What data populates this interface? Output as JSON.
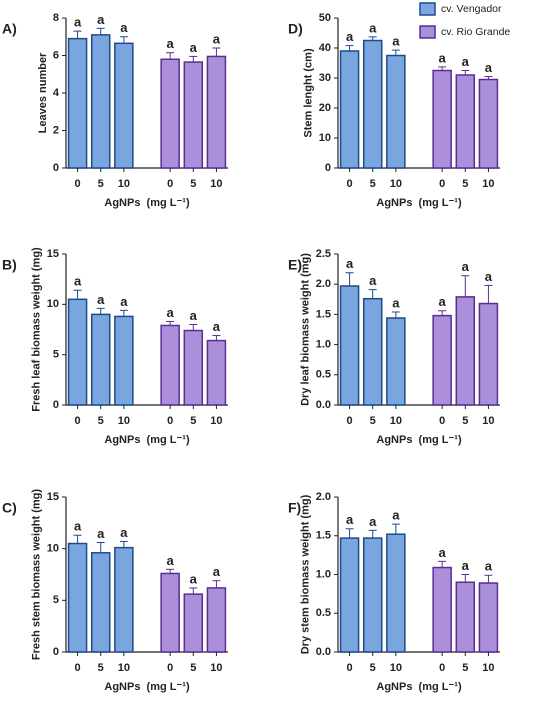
{
  "chart_data": [
    {
      "type": "bar",
      "panel_label": "A)",
      "ylabel": "Leaves number",
      "xlabel": "AgNPs  (mg L⁻¹)",
      "categories": [
        "0",
        "5",
        "10"
      ],
      "ylim": [
        0,
        8
      ],
      "yticks": [
        0,
        2,
        4,
        6,
        8
      ],
      "series": [
        {
          "color": "#7aa6e0",
          "edgecolor": "#1f4a8a",
          "values": [
            6.9,
            7.1,
            6.65
          ],
          "errors": [
            0.4,
            0.35,
            0.35
          ],
          "letters": [
            "a",
            "a",
            "a"
          ]
        },
        {
          "color": "#ac8fda",
          "edgecolor": "#5b2d94",
          "values": [
            5.8,
            5.65,
            5.95
          ],
          "errors": [
            0.35,
            0.3,
            0.45
          ],
          "letters": [
            "a",
            "a",
            "a"
          ]
        }
      ]
    },
    {
      "type": "bar",
      "panel_label": "B)",
      "ylabel": "Fresh leaf biomass weight (mg)",
      "xlabel": "AgNPs  (mg L⁻¹)",
      "categories": [
        "0",
        "5",
        "10"
      ],
      "ylim": [
        0,
        15
      ],
      "yticks": [
        0,
        5,
        10,
        15
      ],
      "series": [
        {
          "color": "#7aa6e0",
          "edgecolor": "#1f4a8a",
          "values": [
            10.5,
            9.0,
            8.8
          ],
          "errors": [
            0.9,
            0.6,
            0.6
          ],
          "letters": [
            "a",
            "a",
            "a"
          ]
        },
        {
          "color": "#ac8fda",
          "edgecolor": "#5b2d94",
          "values": [
            7.9,
            7.4,
            6.4
          ],
          "errors": [
            0.4,
            0.6,
            0.5
          ],
          "letters": [
            "a",
            "a",
            "a"
          ]
        }
      ]
    },
    {
      "type": "bar",
      "panel_label": "C)",
      "ylabel": "Fresh stem biomass weight (mg)",
      "xlabel": "AgNPs  (mg L⁻¹)",
      "categories": [
        "0",
        "5",
        "10"
      ],
      "ylim": [
        0,
        15
      ],
      "yticks": [
        0,
        5,
        10,
        15
      ],
      "series": [
        {
          "color": "#7aa6e0",
          "edgecolor": "#1f4a8a",
          "values": [
            10.5,
            9.6,
            10.1
          ],
          "errors": [
            0.8,
            1.0,
            0.6
          ],
          "letters": [
            "a",
            "a",
            "a"
          ]
        },
        {
          "color": "#ac8fda",
          "edgecolor": "#5b2d94",
          "values": [
            7.6,
            5.6,
            6.2
          ],
          "errors": [
            0.4,
            0.6,
            0.7
          ],
          "letters": [
            "a",
            "a",
            "a"
          ]
        }
      ]
    },
    {
      "type": "bar",
      "panel_label": "D)",
      "ylabel": "Stem lenght (cm)",
      "xlabel": "AgNPs  (mg L⁻¹)",
      "categories": [
        "0",
        "5",
        "10"
      ],
      "ylim": [
        0,
        50
      ],
      "yticks": [
        0,
        10,
        20,
        30,
        40,
        50
      ],
      "legend": "upper right",
      "series": [
        {
          "name": "cv. Vengador",
          "color": "#7aa6e0",
          "edgecolor": "#1f4a8a",
          "values": [
            39,
            42.5,
            37.5
          ],
          "errors": [
            1.8,
            1.2,
            1.8
          ],
          "letters": [
            "a",
            "a",
            "a"
          ]
        },
        {
          "name": "cv. Rio Grande",
          "color": "#ac8fda",
          "edgecolor": "#5b2d94",
          "values": [
            32.5,
            31,
            29.5
          ],
          "errors": [
            1.2,
            1.5,
            1.0
          ],
          "letters": [
            "a",
            "a",
            "a"
          ]
        }
      ]
    },
    {
      "type": "bar",
      "panel_label": "E)",
      "ylabel": "Dry leaf biomass weight (mg)",
      "xlabel": "AgNPs  (mg L⁻¹)",
      "categories": [
        "0",
        "5",
        "10"
      ],
      "ylim": [
        0,
        2.5
      ],
      "yticks": [
        {
          "value": 0,
          "label": "0.0"
        },
        0.5,
        {
          "value": 1,
          "label": "1.0"
        },
        1.5,
        {
          "value": 2,
          "label": "2.0"
        },
        2.5
      ],
      "series": [
        {
          "color": "#7aa6e0",
          "edgecolor": "#1f4a8a",
          "values": [
            1.97,
            1.76,
            1.44
          ],
          "errors": [
            0.22,
            0.15,
            0.1
          ],
          "letters": [
            "a",
            "a",
            "a"
          ]
        },
        {
          "color": "#ac8fda",
          "edgecolor": "#5b2d94",
          "values": [
            1.48,
            1.79,
            1.68
          ],
          "errors": [
            0.08,
            0.35,
            0.3
          ],
          "letters": [
            "a",
            "a",
            "a"
          ]
        }
      ]
    },
    {
      "type": "bar",
      "panel_label": "F)",
      "ylabel": "Dry stem biomass weight (mg)",
      "xlabel": "AgNPs  (mg L⁻¹)",
      "categories": [
        "0",
        "5",
        "10"
      ],
      "ylim": [
        0,
        2
      ],
      "yticks": [
        {
          "value": 0,
          "label": "0.0"
        },
        0.5,
        {
          "value": 1,
          "label": "1.0"
        },
        1.5,
        {
          "value": 2,
          "label": "2.0"
        }
      ],
      "series": [
        {
          "color": "#7aa6e0",
          "edgecolor": "#1f4a8a",
          "values": [
            1.47,
            1.47,
            1.52
          ],
          "errors": [
            0.12,
            0.1,
            0.13
          ],
          "letters": [
            "a",
            "a",
            "a"
          ]
        },
        {
          "color": "#ac8fda",
          "edgecolor": "#5b2d94",
          "values": [
            1.09,
            0.9,
            0.89
          ],
          "errors": [
            0.08,
            0.1,
            0.1
          ],
          "letters": [
            "a",
            "a",
            "a"
          ]
        }
      ]
    }
  ]
}
